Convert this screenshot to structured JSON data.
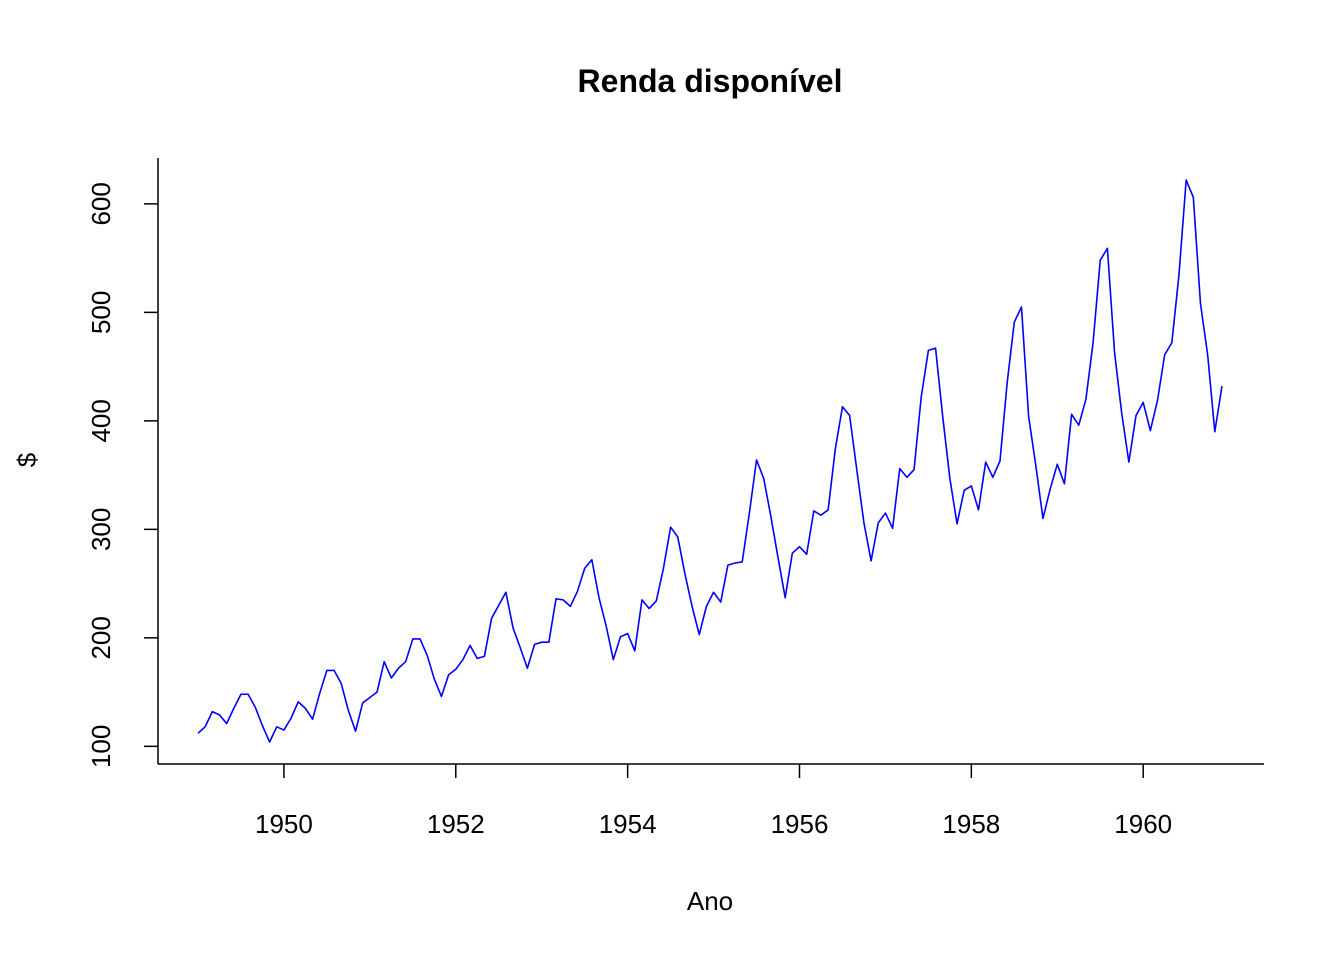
{
  "chart_data": {
    "type": "line",
    "title": "Renda disponível",
    "xlabel": "Ano",
    "ylabel": "$",
    "xlim": [
      1949,
      1960.917
    ],
    "ylim": [
      104,
      622
    ],
    "x_ticks": [
      1950,
      1952,
      1954,
      1956,
      1958,
      1960
    ],
    "y_ticks": [
      100,
      200,
      300,
      400,
      500,
      600
    ],
    "grid": false,
    "legend": "none",
    "colors": {
      "series": "#0000ff",
      "axis": "#000000"
    },
    "x_start": 1949,
    "x_step": 0.08333333,
    "series": [
      {
        "values": [
          112,
          118,
          132,
          129,
          121,
          135,
          148,
          148,
          136,
          119,
          104,
          118,
          115,
          126,
          141,
          135,
          125,
          149,
          170,
          170,
          158,
          133,
          114,
          140,
          145,
          150,
          178,
          163,
          172,
          178,
          199,
          199,
          184,
          162,
          146,
          166,
          171,
          180,
          193,
          181,
          183,
          218,
          230,
          242,
          209,
          191,
          172,
          194,
          196,
          196,
          236,
          235,
          229,
          243,
          264,
          272,
          237,
          211,
          180,
          201,
          204,
          188,
          235,
          227,
          234,
          264,
          302,
          293,
          259,
          229,
          203,
          229,
          242,
          233,
          267,
          269,
          270,
          315,
          364,
          347,
          312,
          274,
          237,
          278,
          284,
          277,
          317,
          313,
          318,
          374,
          413,
          405,
          355,
          306,
          271,
          306,
          315,
          301,
          356,
          348,
          355,
          422,
          465,
          467,
          404,
          347,
          305,
          336,
          340,
          318,
          362,
          348,
          363,
          435,
          491,
          505,
          404,
          359,
          310,
          337,
          360,
          342,
          406,
          396,
          420,
          472,
          548,
          559,
          463,
          407,
          362,
          405,
          417,
          391,
          419,
          461,
          472,
          535,
          622,
          606,
          508,
          461,
          390,
          432
        ]
      }
    ]
  }
}
